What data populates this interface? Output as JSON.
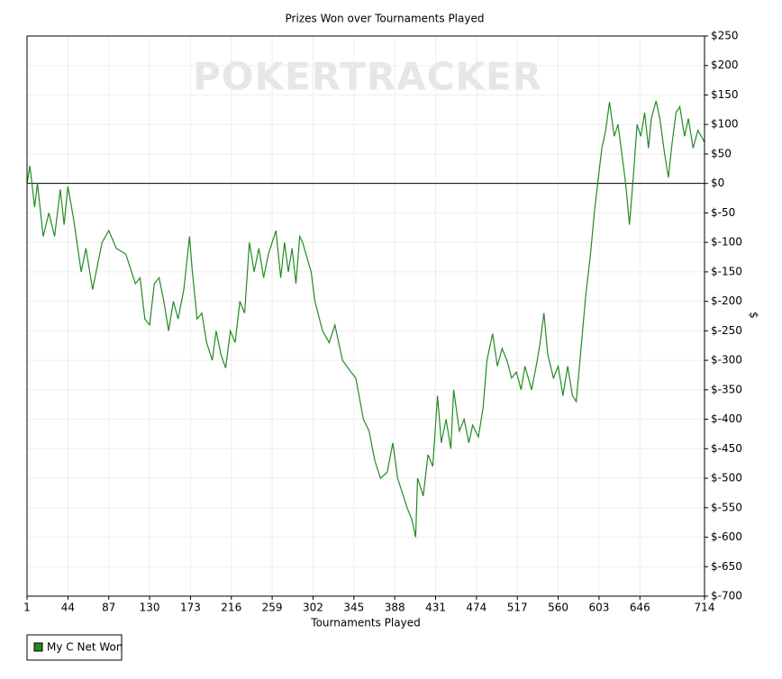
{
  "chart_data": {
    "type": "line",
    "title": "Prizes Won over Tournaments Played",
    "watermark": "POKERTRACKER",
    "x_label": "Tournaments Played",
    "y_label": "$",
    "xlim": [
      1,
      714
    ],
    "xticks": [
      1,
      44,
      87,
      130,
      173,
      216,
      259,
      302,
      345,
      388,
      431,
      474,
      517,
      560,
      603,
      646,
      714
    ],
    "ylim": [
      -700,
      250
    ],
    "yticks": [
      {
        "value": -700,
        "label": "$-700"
      },
      {
        "value": -650,
        "label": "$-650"
      },
      {
        "value": -600,
        "label": "$-600"
      },
      {
        "value": -550,
        "label": "$-550"
      },
      {
        "value": -500,
        "label": "$-500"
      },
      {
        "value": -450,
        "label": "$-450"
      },
      {
        "value": -400,
        "label": "$-400"
      },
      {
        "value": -350,
        "label": "$-350"
      },
      {
        "value": -300,
        "label": "$-300"
      },
      {
        "value": -250,
        "label": "$-250"
      },
      {
        "value": -200,
        "label": "$-200"
      },
      {
        "value": -150,
        "label": "$-150"
      },
      {
        "value": -100,
        "label": "$-100"
      },
      {
        "value": -50,
        "label": "$-50"
      },
      {
        "value": 0,
        "label": "$0"
      },
      {
        "value": 50,
        "label": "$50"
      },
      {
        "value": 100,
        "label": "$100"
      },
      {
        "value": 150,
        "label": "$150"
      },
      {
        "value": 200,
        "label": "$200"
      },
      {
        "value": 250,
        "label": "$250"
      }
    ],
    "grid": true,
    "legend": "bottom-left",
    "x": [
      1,
      4,
      9,
      12,
      18,
      24,
      30,
      36,
      40,
      44,
      50,
      58,
      63,
      70,
      80,
      87,
      95,
      105,
      115,
      120,
      125,
      130,
      135,
      140,
      145,
      150,
      155,
      160,
      166,
      172,
      175,
      180,
      185,
      190,
      196,
      200,
      205,
      210,
      215,
      220,
      225,
      230,
      235,
      240,
      245,
      250,
      255,
      263,
      268,
      272,
      276,
      280,
      284,
      288,
      291,
      300,
      304,
      312,
      319,
      325,
      333,
      342,
      347,
      355,
      361,
      367,
      373,
      380,
      386,
      391,
      395,
      401,
      406,
      410,
      412,
      418,
      423,
      428,
      433,
      437,
      442,
      447,
      450,
      456,
      461,
      466,
      470,
      476,
      481,
      485,
      491,
      496,
      501,
      506,
      511,
      516,
      521,
      525,
      532,
      538,
      541,
      545,
      549,
      555,
      560,
      565,
      570,
      575,
      579,
      584,
      589,
      594,
      598,
      603,
      606,
      610,
      614,
      619,
      623,
      627,
      631,
      635,
      639,
      643,
      647,
      651,
      655,
      658,
      663,
      667,
      672,
      676,
      680,
      684,
      688,
      693,
      697,
      702,
      707,
      714
    ],
    "series": [
      {
        "name": "My C Net Won",
        "color": "#228b22",
        "values": [
          0,
          30,
          -40,
          0,
          -90,
          -50,
          -90,
          -10,
          -70,
          -5,
          -60,
          -150,
          -110,
          -180,
          -100,
          -80,
          -110,
          -120,
          -170,
          -160,
          -230,
          -240,
          -170,
          -160,
          -200,
          -250,
          -200,
          -230,
          -180,
          -90,
          -150,
          -230,
          -220,
          -270,
          -300,
          -250,
          -290,
          -313,
          -250,
          -270,
          -200,
          -220,
          -100,
          -150,
          -110,
          -160,
          -120,
          -80,
          -160,
          -100,
          -150,
          -110,
          -170,
          -90,
          -100,
          -150,
          -200,
          -250,
          -270,
          -240,
          -300,
          -320,
          -330,
          -400,
          -420,
          -470,
          -500,
          -490,
          -440,
          -500,
          -520,
          -550,
          -570,
          -600,
          -500,
          -530,
          -460,
          -480,
          -360,
          -440,
          -400,
          -450,
          -350,
          -420,
          -400,
          -440,
          -410,
          -430,
          -380,
          -300,
          -255,
          -310,
          -280,
          -300,
          -330,
          -320,
          -350,
          -310,
          -350,
          -300,
          -270,
          -220,
          -290,
          -330,
          -310,
          -360,
          -310,
          -360,
          -370,
          -280,
          -190,
          -120,
          -50,
          20,
          60,
          90,
          138,
          80,
          100,
          50,
          0,
          -70,
          10,
          100,
          80,
          120,
          60,
          110,
          140,
          110,
          50,
          10,
          70,
          120,
          130,
          80,
          110,
          60,
          90,
          70
        ]
      }
    ]
  }
}
